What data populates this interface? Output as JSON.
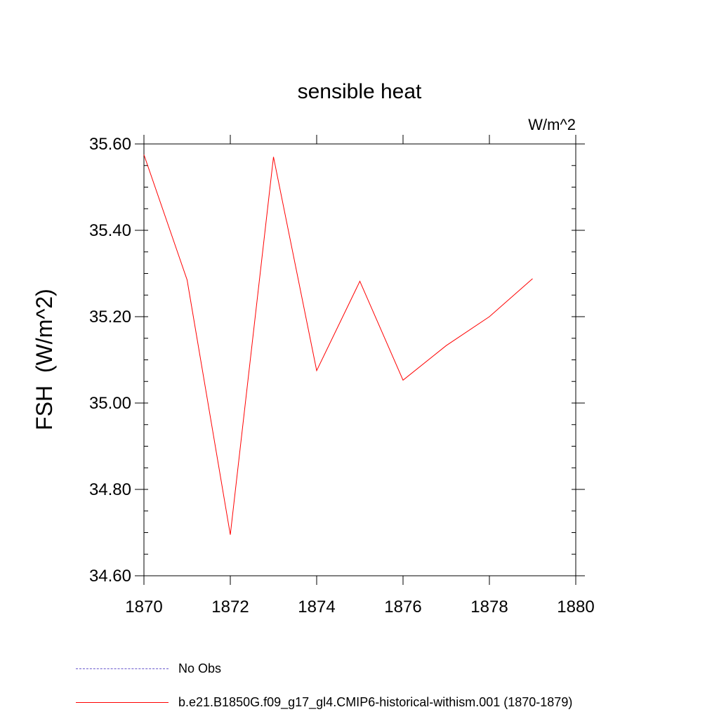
{
  "chart_data": {
    "type": "line",
    "title": "sensible heat",
    "units": "W/m^2",
    "ylabel": "FSH  (W/m^2)",
    "xlabel": "",
    "xlim": [
      1870,
      1880
    ],
    "ylim": [
      34.6,
      35.6
    ],
    "xticks": [
      1870,
      1872,
      1874,
      1876,
      1878,
      1880
    ],
    "yticks": [
      34.6,
      34.8,
      35.0,
      35.2,
      35.4,
      35.6
    ],
    "xtick_labels": [
      "1870",
      "1872",
      "1874",
      "1876",
      "1878",
      "1880"
    ],
    "ytick_labels": [
      "34.60",
      "34.80",
      "35.00",
      "35.20",
      "35.40",
      "35.60"
    ],
    "grid": false,
    "legend_position": "bottom",
    "series": [
      {
        "name": "b.e21.B1850G.f09_g17_gl4.CMIP6-historical-withism.001 (1870-1879)",
        "color": "#ff0000",
        "style": "solid",
        "x": [
          1870,
          1871,
          1872,
          1873,
          1874,
          1875,
          1876,
          1877,
          1878,
          1879
        ],
        "y": [
          35.575,
          35.285,
          34.695,
          35.57,
          35.075,
          35.282,
          35.053,
          35.133,
          35.2,
          35.288
        ]
      }
    ],
    "legend": [
      {
        "label": "No Obs",
        "color": "#6a5acd",
        "style": "dashed"
      },
      {
        "label": "b.e21.B1850G.f09_g17_gl4.CMIP6-historical-withism.001 (1870-1879)",
        "color": "#ff0000",
        "style": "solid"
      }
    ]
  }
}
